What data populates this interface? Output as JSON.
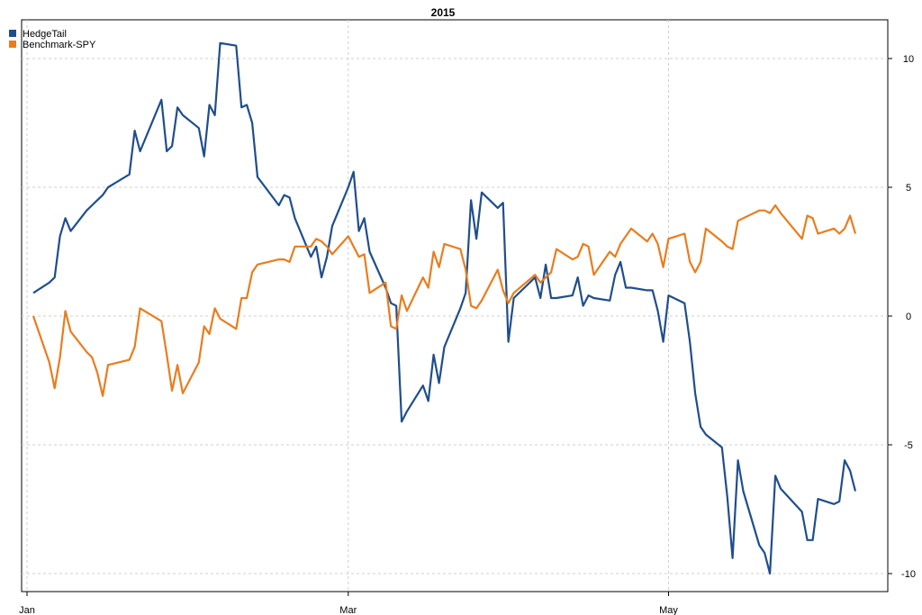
{
  "chart_data": {
    "type": "line",
    "title": "2015",
    "xlabel": "",
    "ylabel": "",
    "x_tick_labels": [
      "Jan",
      "Mar",
      "May"
    ],
    "x_range": [
      "2015-01-02",
      "2015-06-05"
    ],
    "ylim": [
      -10.5,
      11.5
    ],
    "y_ticks": [
      10,
      5,
      0,
      -5,
      -10
    ],
    "y_axis_side": "right",
    "grid": true,
    "legend_position": "top-left",
    "colors": {
      "HedgeTail": "#1f4e8c",
      "Benchmark-SPY": "#e87d1e"
    },
    "series": [
      {
        "name": "HedgeTail",
        "color": "#1f4e8c",
        "points": [
          [
            "2015-01-02",
            0.9
          ],
          [
            "2015-01-05",
            1.3
          ],
          [
            "2015-01-06",
            1.5
          ],
          [
            "2015-01-07",
            3.1
          ],
          [
            "2015-01-08",
            3.8
          ],
          [
            "2015-01-09",
            3.3
          ],
          [
            "2015-01-12",
            4.1
          ],
          [
            "2015-01-13",
            4.3
          ],
          [
            "2015-01-14",
            4.5
          ],
          [
            "2015-01-15",
            4.7
          ],
          [
            "2015-01-16",
            5.0
          ],
          [
            "2015-01-20",
            5.5
          ],
          [
            "2015-01-21",
            7.2
          ],
          [
            "2015-01-22",
            6.4
          ],
          [
            "2015-01-26",
            8.4
          ],
          [
            "2015-01-27",
            6.4
          ],
          [
            "2015-01-28",
            6.6
          ],
          [
            "2015-01-29",
            8.1
          ],
          [
            "2015-01-30",
            7.8
          ],
          [
            "2015-02-02",
            7.3
          ],
          [
            "2015-02-03",
            6.2
          ],
          [
            "2015-02-04",
            8.2
          ],
          [
            "2015-02-05",
            7.8
          ],
          [
            "2015-02-06",
            10.6
          ],
          [
            "2015-02-09",
            10.5
          ],
          [
            "2015-02-10",
            8.1
          ],
          [
            "2015-02-11",
            8.2
          ],
          [
            "2015-02-12",
            7.5
          ],
          [
            "2015-02-13",
            5.4
          ],
          [
            "2015-02-17",
            4.3
          ],
          [
            "2015-02-18",
            4.7
          ],
          [
            "2015-02-19",
            4.6
          ],
          [
            "2015-02-20",
            3.8
          ],
          [
            "2015-02-23",
            2.3
          ],
          [
            "2015-02-24",
            2.7
          ],
          [
            "2015-02-25",
            1.5
          ],
          [
            "2015-02-26",
            2.3
          ],
          [
            "2015-02-27",
            3.5
          ],
          [
            "2015-03-02",
            5.0
          ],
          [
            "2015-03-03",
            5.6
          ],
          [
            "2015-03-04",
            3.3
          ],
          [
            "2015-03-05",
            3.8
          ],
          [
            "2015-03-06",
            2.5
          ],
          [
            "2015-03-09",
            1.1
          ],
          [
            "2015-03-10",
            0.5
          ],
          [
            "2015-03-11",
            0.4
          ],
          [
            "2015-03-12",
            -4.1
          ],
          [
            "2015-03-13",
            -3.7
          ],
          [
            "2015-03-16",
            -2.7
          ],
          [
            "2015-03-17",
            -3.3
          ],
          [
            "2015-03-18",
            -1.5
          ],
          [
            "2015-03-19",
            -2.6
          ],
          [
            "2015-03-20",
            -1.2
          ],
          [
            "2015-03-23",
            0.3
          ],
          [
            "2015-03-24",
            0.9
          ],
          [
            "2015-03-25",
            4.5
          ],
          [
            "2015-03-26",
            3.0
          ],
          [
            "2015-03-27",
            4.8
          ],
          [
            "2015-03-30",
            4.2
          ],
          [
            "2015-03-31",
            4.4
          ],
          [
            "2015-04-01",
            -1.0
          ],
          [
            "2015-04-02",
            0.7
          ],
          [
            "2015-04-06",
            1.5
          ],
          [
            "2015-04-07",
            0.7
          ],
          [
            "2015-04-08",
            2.0
          ],
          [
            "2015-04-09",
            0.7
          ],
          [
            "2015-04-10",
            0.7
          ],
          [
            "2015-04-13",
            0.8
          ],
          [
            "2015-04-14",
            1.5
          ],
          [
            "2015-04-15",
            0.4
          ],
          [
            "2015-04-16",
            0.8
          ],
          [
            "2015-04-17",
            0.7
          ],
          [
            "2015-04-20",
            0.6
          ],
          [
            "2015-04-21",
            1.6
          ],
          [
            "2015-04-22",
            2.1
          ],
          [
            "2015-04-23",
            1.1
          ],
          [
            "2015-04-24",
            1.1
          ],
          [
            "2015-04-27",
            1.0
          ],
          [
            "2015-04-28",
            1.0
          ],
          [
            "2015-04-29",
            0.2
          ],
          [
            "2015-04-30",
            -1.0
          ],
          [
            "2015-05-01",
            0.8
          ],
          [
            "2015-05-04",
            0.5
          ],
          [
            "2015-05-05",
            -1.0
          ],
          [
            "2015-05-06",
            -3.0
          ],
          [
            "2015-05-07",
            -4.3
          ],
          [
            "2015-05-08",
            -4.6
          ],
          [
            "2015-05-11",
            -5.1
          ],
          [
            "2015-05-12",
            -7.0
          ],
          [
            "2015-05-13",
            -9.4
          ],
          [
            "2015-05-14",
            -5.6
          ],
          [
            "2015-05-15",
            -6.8
          ],
          [
            "2015-05-18",
            -8.9
          ],
          [
            "2015-05-19",
            -9.2
          ],
          [
            "2015-05-20",
            -10.0
          ],
          [
            "2015-05-21",
            -6.2
          ],
          [
            "2015-05-22",
            -6.7
          ],
          [
            "2015-05-26",
            -7.6
          ],
          [
            "2015-05-27",
            -8.7
          ],
          [
            "2015-05-28",
            -8.7
          ],
          [
            "2015-05-29",
            -7.1
          ],
          [
            "2015-06-01",
            -7.3
          ],
          [
            "2015-06-02",
            -7.2
          ],
          [
            "2015-06-03",
            -5.6
          ],
          [
            "2015-06-04",
            -6.0
          ],
          [
            "2015-06-05",
            -6.8
          ]
        ]
      },
      {
        "name": "Benchmark-SPY",
        "color": "#e87d1e",
        "points": [
          [
            "2015-01-02",
            0.0
          ],
          [
            "2015-01-05",
            -1.8
          ],
          [
            "2015-01-06",
            -2.8
          ],
          [
            "2015-01-07",
            -1.6
          ],
          [
            "2015-01-08",
            0.2
          ],
          [
            "2015-01-09",
            -0.6
          ],
          [
            "2015-01-12",
            -1.4
          ],
          [
            "2015-01-13",
            -1.6
          ],
          [
            "2015-01-14",
            -2.2
          ],
          [
            "2015-01-15",
            -3.1
          ],
          [
            "2015-01-16",
            -1.9
          ],
          [
            "2015-01-20",
            -1.7
          ],
          [
            "2015-01-21",
            -1.2
          ],
          [
            "2015-01-22",
            0.3
          ],
          [
            "2015-01-26",
            -0.2
          ],
          [
            "2015-01-27",
            -1.5
          ],
          [
            "2015-01-28",
            -2.9
          ],
          [
            "2015-01-29",
            -1.9
          ],
          [
            "2015-01-30",
            -3.0
          ],
          [
            "2015-02-02",
            -1.8
          ],
          [
            "2015-02-03",
            -0.4
          ],
          [
            "2015-02-04",
            -0.7
          ],
          [
            "2015-02-05",
            0.3
          ],
          [
            "2015-02-06",
            -0.1
          ],
          [
            "2015-02-09",
            -0.5
          ],
          [
            "2015-02-10",
            0.7
          ],
          [
            "2015-02-11",
            0.7
          ],
          [
            "2015-02-12",
            1.7
          ],
          [
            "2015-02-13",
            2.0
          ],
          [
            "2015-02-17",
            2.2
          ],
          [
            "2015-02-18",
            2.2
          ],
          [
            "2015-02-19",
            2.1
          ],
          [
            "2015-02-20",
            2.7
          ],
          [
            "2015-02-23",
            2.7
          ],
          [
            "2015-02-24",
            3.0
          ],
          [
            "2015-02-25",
            2.9
          ],
          [
            "2015-02-26",
            2.7
          ],
          [
            "2015-02-27",
            2.4
          ],
          [
            "2015-03-02",
            3.1
          ],
          [
            "2015-03-03",
            2.7
          ],
          [
            "2015-03-04",
            2.3
          ],
          [
            "2015-03-05",
            2.4
          ],
          [
            "2015-03-06",
            0.9
          ],
          [
            "2015-03-09",
            1.3
          ],
          [
            "2015-03-10",
            -0.4
          ],
          [
            "2015-03-11",
            -0.5
          ],
          [
            "2015-03-12",
            0.8
          ],
          [
            "2015-03-13",
            0.2
          ],
          [
            "2015-03-16",
            1.5
          ],
          [
            "2015-03-17",
            1.1
          ],
          [
            "2015-03-18",
            2.5
          ],
          [
            "2015-03-19",
            1.9
          ],
          [
            "2015-03-20",
            2.8
          ],
          [
            "2015-03-23",
            2.6
          ],
          [
            "2015-03-24",
            1.8
          ],
          [
            "2015-03-25",
            0.4
          ],
          [
            "2015-03-26",
            0.3
          ],
          [
            "2015-03-27",
            0.6
          ],
          [
            "2015-03-30",
            1.8
          ],
          [
            "2015-03-31",
            1.0
          ],
          [
            "2015-04-01",
            0.5
          ],
          [
            "2015-04-02",
            0.9
          ],
          [
            "2015-04-06",
            1.6
          ],
          [
            "2015-04-07",
            1.3
          ],
          [
            "2015-04-08",
            1.5
          ],
          [
            "2015-04-09",
            1.7
          ],
          [
            "2015-04-10",
            2.6
          ],
          [
            "2015-04-13",
            2.2
          ],
          [
            "2015-04-14",
            2.3
          ],
          [
            "2015-04-15",
            2.8
          ],
          [
            "2015-04-16",
            2.7
          ],
          [
            "2015-04-17",
            1.6
          ],
          [
            "2015-04-20",
            2.5
          ],
          [
            "2015-04-21",
            2.3
          ],
          [
            "2015-04-22",
            2.8
          ],
          [
            "2015-04-23",
            3.1
          ],
          [
            "2015-04-24",
            3.4
          ],
          [
            "2015-04-27",
            2.9
          ],
          [
            "2015-04-28",
            3.2
          ],
          [
            "2015-04-29",
            2.8
          ],
          [
            "2015-04-30",
            1.9
          ],
          [
            "2015-05-01",
            3.0
          ],
          [
            "2015-05-04",
            3.2
          ],
          [
            "2015-05-05",
            2.1
          ],
          [
            "2015-05-06",
            1.7
          ],
          [
            "2015-05-07",
            2.1
          ],
          [
            "2015-05-08",
            3.4
          ],
          [
            "2015-05-11",
            2.9
          ],
          [
            "2015-05-12",
            2.7
          ],
          [
            "2015-05-13",
            2.6
          ],
          [
            "2015-05-14",
            3.7
          ],
          [
            "2015-05-15",
            3.8
          ],
          [
            "2015-05-18",
            4.1
          ],
          [
            "2015-05-19",
            4.1
          ],
          [
            "2015-05-20",
            4.0
          ],
          [
            "2015-05-21",
            4.3
          ],
          [
            "2015-05-22",
            4.0
          ],
          [
            "2015-05-26",
            3.0
          ],
          [
            "2015-05-27",
            3.9
          ],
          [
            "2015-05-28",
            3.8
          ],
          [
            "2015-05-29",
            3.2
          ],
          [
            "2015-06-01",
            3.4
          ],
          [
            "2015-06-02",
            3.2
          ],
          [
            "2015-06-03",
            3.4
          ],
          [
            "2015-06-04",
            3.9
          ],
          [
            "2015-06-05",
            3.2
          ]
        ]
      }
    ]
  }
}
